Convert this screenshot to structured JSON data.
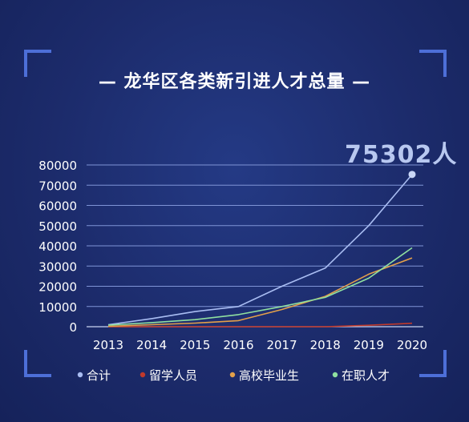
{
  "page": {
    "title": "— 龙华区各类新引进人才总量 —"
  },
  "chart_data": {
    "type": "line",
    "title": "龙华区各类新引进人才总量",
    "x": [
      "2013",
      "2014",
      "2015",
      "2016",
      "2017",
      "2018",
      "2019",
      "2020"
    ],
    "ylim": [
      0,
      80000
    ],
    "yticks": [
      "0",
      "10000",
      "20000",
      "30000",
      "40000",
      "50000",
      "60000",
      "70000",
      "80000"
    ],
    "grid": true,
    "legend_position": "bottom",
    "annotation": {
      "text": "75302人",
      "value": 75302,
      "series": "合计",
      "x": "2020"
    },
    "series": [
      {
        "name": "合计",
        "color": "#a9bdf2",
        "values": [
          1000,
          4000,
          7500,
          10000,
          20000,
          29000,
          50000,
          75302
        ]
      },
      {
        "name": "留学人员",
        "color": "#c0392b",
        "values": [
          0,
          0,
          0,
          0,
          0,
          0,
          700,
          1700
        ]
      },
      {
        "name": "高校毕业生",
        "color": "#e3a04a",
        "values": [
          200,
          1000,
          1800,
          3000,
          8500,
          15000,
          26000,
          34000
        ]
      },
      {
        "name": "在职人才",
        "color": "#8fe0a0",
        "values": [
          800,
          2000,
          3500,
          6000,
          10000,
          14500,
          24000,
          39000
        ]
      }
    ]
  }
}
